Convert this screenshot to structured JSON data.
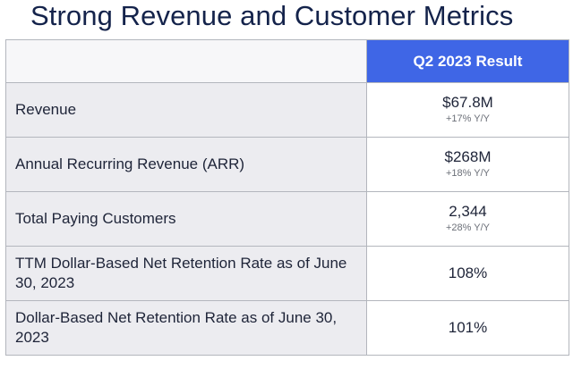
{
  "title": "Strong Revenue and Customer Metrics",
  "table": {
    "header": {
      "label_column": "",
      "value_column": "Q2 2023 Result"
    },
    "rows": [
      {
        "label": "Revenue",
        "value": "$67.8M",
        "change": "+17% Y/Y"
      },
      {
        "label": "Annual Recurring Revenue (ARR)",
        "value": "$268M",
        "change": "+18% Y/Y"
      },
      {
        "label": "Total Paying Customers",
        "value": "2,344",
        "change": "+28% Y/Y"
      },
      {
        "label": "TTM Dollar-Based Net Retention Rate as of June 30, 2023",
        "value": "108%"
      },
      {
        "label": "Dollar-Based Net Retention Rate as of June 30, 2023",
        "value": "101%"
      }
    ]
  },
  "colors": {
    "header_accent": "#3f66e6",
    "label_cell_bg": "#ececf0",
    "title_text": "#14234b"
  }
}
